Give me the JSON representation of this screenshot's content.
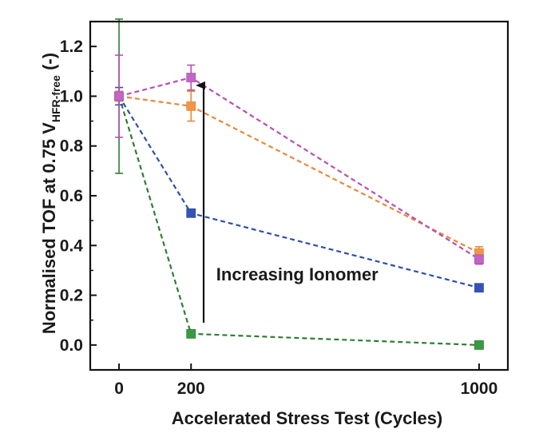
{
  "chart_data": {
    "type": "line",
    "xlabel": "Accelerated Stress Test (Cycles)",
    "ylabel": {
      "main": "Normalised TOF at 0.75 V",
      "subscript": "HFR-free",
      "suffix": " (-)"
    },
    "xlim": [
      -80,
      1080
    ],
    "ylim": [
      -0.1,
      1.3
    ],
    "x_ticks": [
      0,
      200,
      1000
    ],
    "y_ticks": [
      0.0,
      0.2,
      0.4,
      0.6,
      0.8,
      1.0,
      1.2
    ],
    "y_tick_labels": [
      "0.0",
      "0.2",
      "0.4",
      "0.6",
      "0.8",
      "1.0",
      "1.2"
    ],
    "x_tick_labels": [
      "0",
      "200",
      "1000"
    ],
    "grid": false,
    "series": [
      {
        "color": "#2e7d32",
        "marker_color": "#3a9a44",
        "style": "dashed",
        "x": [
          0,
          200,
          1000
        ],
        "y": [
          1.0,
          0.045,
          0.0
        ],
        "yerr": [
          0.31,
          0.0,
          0.0
        ]
      },
      {
        "color": "#2f4fa8",
        "marker_color": "#3652b8",
        "style": "dashed",
        "x": [
          0,
          200,
          1000
        ],
        "y": [
          1.0,
          0.53,
          0.23
        ],
        "yerr": [
          0.035,
          0.0,
          0.0
        ]
      },
      {
        "color": "#e8883a",
        "marker_color": "#f0964a",
        "style": "dashed",
        "x": [
          0,
          200,
          1000
        ],
        "y": [
          1.0,
          0.96,
          0.37
        ],
        "yerr": [
          0.02,
          0.06,
          0.025
        ]
      },
      {
        "color": "#b64fb8",
        "marker_color": "#c066c4",
        "style": "dashed",
        "x": [
          0,
          200,
          1000
        ],
        "y": [
          1.0,
          1.075,
          0.345
        ],
        "yerr": [
          0.165,
          0.05,
          0.02
        ]
      }
    ],
    "annotations": [
      {
        "type": "text",
        "text": "Increasing Ionomer",
        "x": 270,
        "y": 0.26
      },
      {
        "type": "arrow",
        "x": 235,
        "y_from": 0.09,
        "y_to": 1.05
      }
    ]
  }
}
